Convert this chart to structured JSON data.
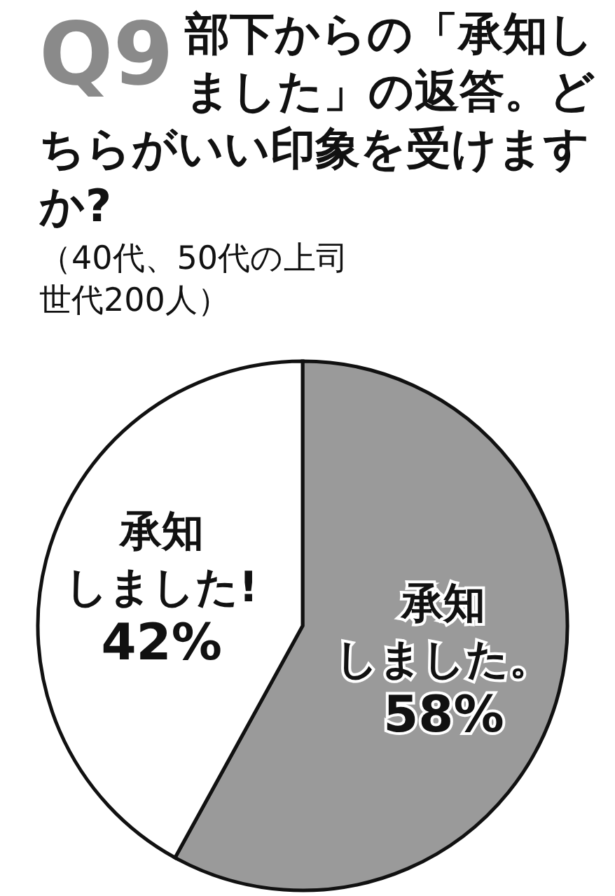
{
  "chart_data": {
    "type": "pie",
    "title": "Q9",
    "subtitle": "部下からの「承知しました」の返答。どちらがいい印象を受けますか?",
    "annotations": [
      "（40代、50代の上司世代200人）"
    ],
    "categories": [
      "承知しました。",
      "承知しました!"
    ],
    "values": [
      58,
      42
    ],
    "colors": [
      "#9a9a9a",
      "#ffffff"
    ],
    "value_labels": [
      "58%",
      "42%"
    ]
  }
}
